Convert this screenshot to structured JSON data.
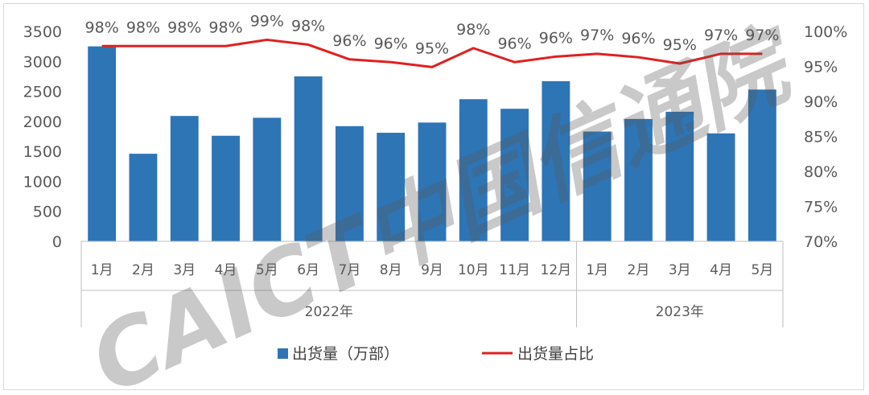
{
  "chart_data": {
    "type": "bar",
    "title": "",
    "categories": [
      "1月",
      "2月",
      "3月",
      "4月",
      "5月",
      "6月",
      "7月",
      "8月",
      "9月",
      "10月",
      "11月",
      "12月",
      "1月",
      "2月",
      "3月",
      "4月",
      "5月"
    ],
    "groups": [
      {
        "label": "2022年",
        "start": 0,
        "end": 11
      },
      {
        "label": "2023年",
        "start": 12,
        "end": 16
      }
    ],
    "series": [
      {
        "name": "出货量（万部）",
        "type": "bar",
        "axis": "left",
        "color": "#2e75b6",
        "values": [
          3250,
          1460,
          2090,
          1760,
          2060,
          2750,
          1920,
          1810,
          1980,
          2370,
          2210,
          2670,
          1830,
          2040,
          2160,
          1800,
          2530
        ]
      },
      {
        "name": "出货量占比",
        "type": "line",
        "axis": "right",
        "color": "#e02020",
        "values": [
          97.9,
          97.9,
          97.9,
          97.9,
          98.8,
          98.1,
          96.0,
          95.6,
          94.9,
          97.6,
          95.6,
          96.4,
          96.8,
          96.3,
          95.4,
          96.8,
          96.8
        ],
        "labels": [
          "98%",
          "98%",
          "98%",
          "98%",
          "99%",
          "98%",
          "96%",
          "96%",
          "95%",
          "98%",
          "96%",
          "96%",
          "97%",
          "96%",
          "95%",
          "97%",
          "97%"
        ]
      }
    ],
    "y_left": {
      "min": 0,
      "max": 3500,
      "ticks": [
        "0",
        "500",
        "1000",
        "1500",
        "2000",
        "2500",
        "3000",
        "3500"
      ]
    },
    "y_right": {
      "min": 70,
      "max": 100,
      "ticks": [
        "70%",
        "75%",
        "80%",
        "85%",
        "90%",
        "95%",
        "100%"
      ]
    },
    "grid": false,
    "legend_position": "bottom"
  },
  "watermark": {
    "text": "CAICT中国信通院",
    "color": "#3a4fa0"
  }
}
